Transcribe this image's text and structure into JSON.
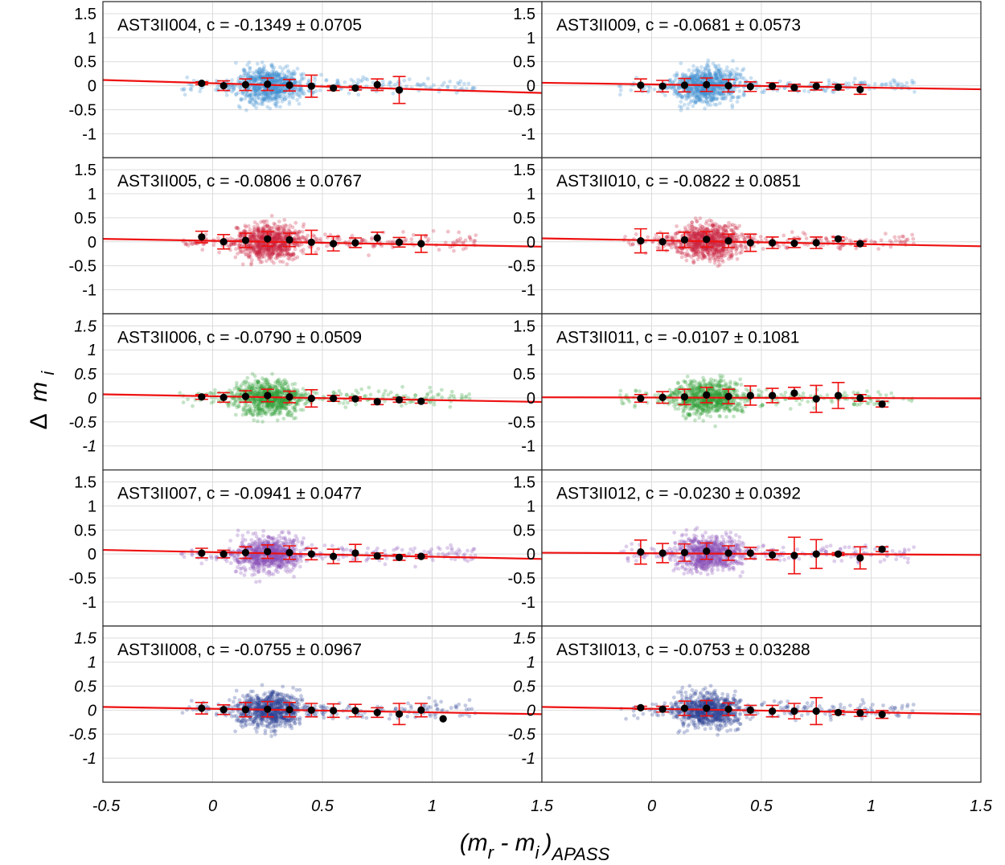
{
  "figure": {
    "xlabel": {
      "main": "(m",
      "r": "r",
      "mid": " - m",
      "i": "i",
      "close": ")",
      "sub": "APASS"
    },
    "ylabel": {
      "delta": "Δ",
      "m": "m",
      "sub": "i"
    }
  },
  "chart_data": {
    "type": "scatter",
    "layout": "grid 5 rows x 2 columns, shared axes",
    "xlim": [
      -0.5,
      1.5
    ],
    "ylim": [
      -1.5,
      1.75
    ],
    "grid": true,
    "x_ticks": [
      {
        "value": -0.5,
        "label": "-0.5"
      },
      {
        "value": 0,
        "label": "0"
      },
      {
        "value": 0.5,
        "label": "0.5"
      },
      {
        "value": 1,
        "label": "1"
      },
      {
        "value": 1.5,
        "label": "1.5"
      }
    ],
    "y_ticks": [
      {
        "value": 1.5,
        "label": "1.5"
      },
      {
        "value": 1,
        "label": "1"
      },
      {
        "value": 0.5,
        "label": "0.5"
      },
      {
        "value": 0,
        "label": "0"
      },
      {
        "value": -0.5,
        "label": "-0.5"
      },
      {
        "value": -1,
        "label": "-1"
      }
    ],
    "fit_line_color": "#ee1111",
    "bin_point_color": "#000000",
    "panels": [
      {
        "row": 0,
        "col": 0,
        "title_name": "AST3II004",
        "c_text": "c = -0.1349",
        "pm": "±",
        "err_text": "0.0705",
        "color": "#3f8fd0",
        "slope": -0.1349,
        "intercept": 0.017,
        "ytick_italic": false,
        "cloud_seed": 11,
        "bins": [
          {
            "x": -0.05,
            "y": 0.05,
            "e": 0.03
          },
          {
            "x": 0.05,
            "y": 0.0,
            "e": 0.1
          },
          {
            "x": 0.15,
            "y": 0.02,
            "e": 0.12
          },
          {
            "x": 0.25,
            "y": 0.03,
            "e": 0.13
          },
          {
            "x": 0.35,
            "y": 0.01,
            "e": 0.12
          },
          {
            "x": 0.45,
            "y": -0.01,
            "e": 0.23
          },
          {
            "x": 0.55,
            "y": -0.05,
            "e": 0.05
          },
          {
            "x": 0.65,
            "y": -0.05,
            "e": 0.04
          },
          {
            "x": 0.75,
            "y": 0.02,
            "e": 0.12
          },
          {
            "x": 0.85,
            "y": -0.09,
            "e": 0.28
          }
        ]
      },
      {
        "row": 0,
        "col": 1,
        "title_name": "AST3II009",
        "c_text": "c  = -0.0681",
        "pm": "±",
        "err_text": "0.0573",
        "color": "#3f8fd0",
        "slope": -0.0681,
        "intercept": 0.01,
        "ytick_italic": false,
        "cloud_seed": 23,
        "bins": [
          {
            "x": -0.05,
            "y": 0.01,
            "e": 0.13
          },
          {
            "x": 0.05,
            "y": -0.01,
            "e": 0.12
          },
          {
            "x": 0.15,
            "y": 0.01,
            "e": 0.14
          },
          {
            "x": 0.25,
            "y": 0.02,
            "e": 0.14
          },
          {
            "x": 0.35,
            "y": 0.0,
            "e": 0.13
          },
          {
            "x": 0.45,
            "y": -0.02,
            "e": 0.1
          },
          {
            "x": 0.55,
            "y": -0.01,
            "e": 0.07
          },
          {
            "x": 0.65,
            "y": -0.04,
            "e": 0.07
          },
          {
            "x": 0.75,
            "y": -0.01,
            "e": 0.08
          },
          {
            "x": 0.85,
            "y": -0.03,
            "e": 0.06
          },
          {
            "x": 0.95,
            "y": -0.08,
            "e": 0.1
          }
        ]
      },
      {
        "row": 1,
        "col": 0,
        "title_name": "AST3II005",
        "c_text": "c = -0.0806",
        "pm": "±",
        "err_text": "0.0767",
        "color": "#c8203c",
        "slope": -0.0806,
        "intercept": 0.0,
        "ytick_italic": false,
        "cloud_seed": 37,
        "bins": [
          {
            "x": -0.05,
            "y": 0.1,
            "e": 0.12
          },
          {
            "x": 0.05,
            "y": 0.0,
            "e": 0.15
          },
          {
            "x": 0.15,
            "y": 0.03,
            "e": 0.15
          },
          {
            "x": 0.25,
            "y": 0.06,
            "e": 0.15
          },
          {
            "x": 0.35,
            "y": 0.04,
            "e": 0.14
          },
          {
            "x": 0.45,
            "y": -0.01,
            "e": 0.25
          },
          {
            "x": 0.55,
            "y": -0.04,
            "e": 0.15
          },
          {
            "x": 0.65,
            "y": -0.02,
            "e": 0.1
          },
          {
            "x": 0.75,
            "y": 0.08,
            "e": 0.12
          },
          {
            "x": 0.85,
            "y": -0.01,
            "e": 0.1
          },
          {
            "x": 0.95,
            "y": -0.04,
            "e": 0.18
          }
        ]
      },
      {
        "row": 1,
        "col": 1,
        "title_name": "AST3II010",
        "c_text": "c = -0.0822",
        "pm": "±",
        "err_text": " 0.0851",
        "color": "#c8203c",
        "slope": -0.0822,
        "intercept": 0.01,
        "ytick_italic": false,
        "cloud_seed": 41,
        "bins": [
          {
            "x": -0.05,
            "y": 0.02,
            "e": 0.25
          },
          {
            "x": 0.05,
            "y": 0.0,
            "e": 0.18
          },
          {
            "x": 0.15,
            "y": 0.04,
            "e": 0.16
          },
          {
            "x": 0.25,
            "y": 0.05,
            "e": 0.16
          },
          {
            "x": 0.35,
            "y": 0.02,
            "e": 0.14
          },
          {
            "x": 0.45,
            "y": -0.02,
            "e": 0.18
          },
          {
            "x": 0.55,
            "y": -0.02,
            "e": 0.12
          },
          {
            "x": 0.65,
            "y": -0.03,
            "e": 0.09
          },
          {
            "x": 0.75,
            "y": -0.02,
            "e": 0.12
          },
          {
            "x": 0.85,
            "y": 0.06,
            "e": 0.04
          },
          {
            "x": 0.95,
            "y": -0.04,
            "e": 0.05
          }
        ]
      },
      {
        "row": 2,
        "col": 0,
        "title_name": "AST3II006",
        "c_text": "c = -0.0790",
        "pm": "±",
        "err_text": "0.0509",
        "color": "#2e9d35",
        "slope": -0.079,
        "intercept": 0.015,
        "ytick_italic": true,
        "cloud_seed": 53,
        "bins": [
          {
            "x": -0.05,
            "y": 0.02,
            "e": 0.05
          },
          {
            "x": 0.05,
            "y": 0.01,
            "e": 0.1
          },
          {
            "x": 0.15,
            "y": 0.03,
            "e": 0.12
          },
          {
            "x": 0.25,
            "y": 0.05,
            "e": 0.13
          },
          {
            "x": 0.35,
            "y": 0.02,
            "e": 0.12
          },
          {
            "x": 0.45,
            "y": -0.01,
            "e": 0.18
          },
          {
            "x": 0.55,
            "y": -0.01,
            "e": 0.06
          },
          {
            "x": 0.65,
            "y": -0.02,
            "e": 0.04
          },
          {
            "x": 0.75,
            "y": -0.08,
            "e": 0.06
          },
          {
            "x": 0.85,
            "y": -0.04,
            "e": 0.05
          },
          {
            "x": 0.95,
            "y": -0.07,
            "e": 0.04
          }
        ]
      },
      {
        "row": 2,
        "col": 1,
        "title_name": "AST3II011",
        "c_text": "c  = -0.0107",
        "pm": "±",
        "err_text": "0.1081",
        "color": "#2e9d35",
        "slope": -0.0107,
        "intercept": 0.005,
        "ytick_italic": false,
        "cloud_seed": 67,
        "bins": [
          {
            "x": -0.05,
            "y": -0.01,
            "e": 0.08
          },
          {
            "x": 0.05,
            "y": 0.01,
            "e": 0.12
          },
          {
            "x": 0.15,
            "y": 0.02,
            "e": 0.16
          },
          {
            "x": 0.25,
            "y": 0.06,
            "e": 0.16
          },
          {
            "x": 0.35,
            "y": 0.03,
            "e": 0.15
          },
          {
            "x": 0.45,
            "y": 0.05,
            "e": 0.2
          },
          {
            "x": 0.55,
            "y": 0.05,
            "e": 0.15
          },
          {
            "x": 0.65,
            "y": 0.1,
            "e": 0.12
          },
          {
            "x": 0.75,
            "y": -0.02,
            "e": 0.28
          },
          {
            "x": 0.85,
            "y": 0.05,
            "e": 0.27
          },
          {
            "x": 0.95,
            "y": 0.0,
            "e": 0.07
          },
          {
            "x": 1.05,
            "y": -0.13,
            "e": 0.06
          }
        ]
      },
      {
        "row": 3,
        "col": 0,
        "title_name": "AST3II007",
        "c_text": "c = -0.0941",
        "pm": "±",
        "err_text": "0.0477",
        "color": "#8a4fb8",
        "slope": -0.0941,
        "intercept": 0.015,
        "ytick_italic": false,
        "cloud_seed": 79,
        "bins": [
          {
            "x": -0.05,
            "y": 0.02,
            "e": 0.1
          },
          {
            "x": 0.05,
            "y": 0.0,
            "e": 0.08
          },
          {
            "x": 0.15,
            "y": 0.03,
            "e": 0.12
          },
          {
            "x": 0.25,
            "y": 0.05,
            "e": 0.14
          },
          {
            "x": 0.35,
            "y": 0.03,
            "e": 0.14
          },
          {
            "x": 0.45,
            "y": 0.0,
            "e": 0.12
          },
          {
            "x": 0.55,
            "y": -0.05,
            "e": 0.15
          },
          {
            "x": 0.65,
            "y": 0.02,
            "e": 0.18
          },
          {
            "x": 0.75,
            "y": -0.04,
            "e": 0.06
          },
          {
            "x": 0.85,
            "y": -0.07,
            "e": 0.06
          },
          {
            "x": 0.95,
            "y": -0.05,
            "e": 0.04
          }
        ]
      },
      {
        "row": 3,
        "col": 1,
        "title_name": "AST3II012",
        "c_text": "c = -0.0230",
        "pm": "±",
        "err_text": "0.0392",
        "color": "#8a4fb8",
        "slope": -0.023,
        "intercept": 0.01,
        "ytick_italic": false,
        "cloud_seed": 83,
        "bins": [
          {
            "x": -0.05,
            "y": 0.04,
            "e": 0.25
          },
          {
            "x": 0.05,
            "y": 0.02,
            "e": 0.2
          },
          {
            "x": 0.15,
            "y": 0.03,
            "e": 0.18
          },
          {
            "x": 0.25,
            "y": 0.06,
            "e": 0.17
          },
          {
            "x": 0.35,
            "y": 0.02,
            "e": 0.15
          },
          {
            "x": 0.45,
            "y": 0.02,
            "e": 0.12
          },
          {
            "x": 0.55,
            "y": -0.02,
            "e": 0.1
          },
          {
            "x": 0.65,
            "y": -0.03,
            "e": 0.38
          },
          {
            "x": 0.75,
            "y": 0.0,
            "e": 0.3
          },
          {
            "x": 0.85,
            "y": 0.0,
            "e": 0.03
          },
          {
            "x": 0.95,
            "y": -0.08,
            "e": 0.23
          },
          {
            "x": 1.05,
            "y": 0.1,
            "e": 0.05
          }
        ]
      },
      {
        "row": 4,
        "col": 0,
        "title_name": "AST3II008",
        "c_text": "c = -0.0755",
        "pm": "±",
        "err_text": "0.0967",
        "color": "#2c3f94",
        "slope": -0.0755,
        "intercept": 0.01,
        "ytick_italic": true,
        "cloud_seed": 97,
        "bins": [
          {
            "x": -0.05,
            "y": 0.04,
            "e": 0.12
          },
          {
            "x": 0.05,
            "y": 0.01,
            "e": 0.1
          },
          {
            "x": 0.15,
            "y": 0.01,
            "e": 0.15
          },
          {
            "x": 0.25,
            "y": 0.02,
            "e": 0.16
          },
          {
            "x": 0.35,
            "y": 0.01,
            "e": 0.15
          },
          {
            "x": 0.45,
            "y": 0.0,
            "e": 0.14
          },
          {
            "x": 0.55,
            "y": -0.01,
            "e": 0.14
          },
          {
            "x": 0.65,
            "y": -0.01,
            "e": 0.13
          },
          {
            "x": 0.75,
            "y": -0.05,
            "e": 0.1
          },
          {
            "x": 0.85,
            "y": -0.08,
            "e": 0.22
          },
          {
            "x": 0.95,
            "y": 0.0,
            "e": 0.14
          },
          {
            "x": 1.05,
            "y": -0.18,
            "e": 0.0
          }
        ]
      },
      {
        "row": 4,
        "col": 1,
        "title_name": "AST3II013",
        "c_text": "c = -0.0753",
        "pm": "±",
        "err_text": "0.03288",
        "color": "#2c3f94",
        "slope": -0.0753,
        "intercept": 0.01,
        "ytick_italic": true,
        "cloud_seed": 101,
        "bins": [
          {
            "x": -0.05,
            "y": 0.05,
            "e": 0.03
          },
          {
            "x": 0.05,
            "y": 0.02,
            "e": 0.06
          },
          {
            "x": 0.15,
            "y": 0.04,
            "e": 0.15
          },
          {
            "x": 0.25,
            "y": 0.04,
            "e": 0.16
          },
          {
            "x": 0.35,
            "y": 0.02,
            "e": 0.13
          },
          {
            "x": 0.45,
            "y": 0.0,
            "e": 0.1
          },
          {
            "x": 0.55,
            "y": -0.02,
            "e": 0.12
          },
          {
            "x": 0.65,
            "y": -0.02,
            "e": 0.16
          },
          {
            "x": 0.75,
            "y": -0.02,
            "e": 0.28
          },
          {
            "x": 0.85,
            "y": -0.05,
            "e": 0.04
          },
          {
            "x": 0.95,
            "y": -0.06,
            "e": 0.07
          },
          {
            "x": 1.05,
            "y": -0.09,
            "e": 0.08
          }
        ]
      }
    ]
  }
}
